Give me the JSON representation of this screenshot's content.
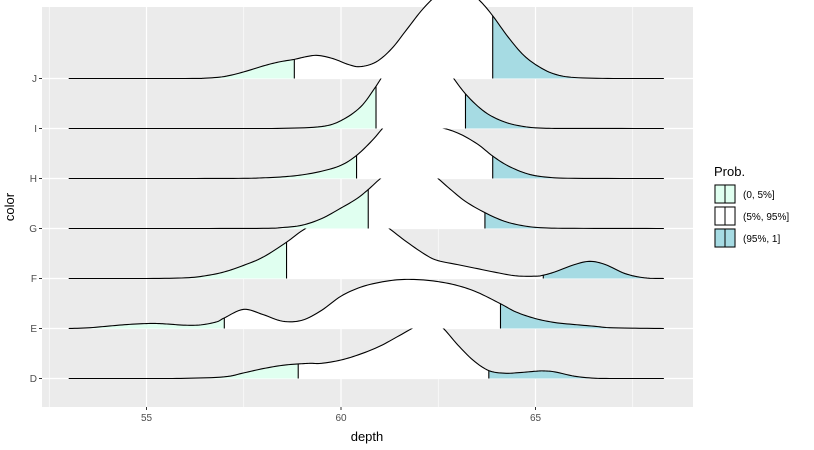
{
  "chart_data": {
    "type": "ridgeline",
    "xlabel": "depth",
    "ylabel": "color",
    "xlim": [
      52.5,
      68.5
    ],
    "x_ticks": [
      55,
      60,
      65
    ],
    "x_tick_labels": [
      "55",
      "60",
      "65"
    ],
    "categories": [
      "D",
      "E",
      "F",
      "G",
      "H",
      "I",
      "J"
    ],
    "legend": {
      "title": "Prob.",
      "placement": "right",
      "entries": [
        {
          "label": "(0, 5%]",
          "color": "#e0fff0"
        },
        {
          "label": "(5%, 95%]",
          "color": "#ffffff"
        },
        {
          "label": "(95%, 1]",
          "color": "#a6dbe3"
        }
      ]
    },
    "colors": {
      "panel": "#ebebeb",
      "grid": "#ffffff",
      "low_tail": "#e0fff0",
      "mid": "#ffffff",
      "high_tail": "#a6dbe3",
      "outline": "#000000"
    },
    "grid": true,
    "series": [
      {
        "category": "D",
        "q05": 58.9,
        "q95": 63.8,
        "x": [
          53,
          55,
          56,
          57,
          57.5,
          58,
          58.5,
          58.9,
          59.2,
          59.5,
          60,
          60.5,
          61,
          61.5,
          62,
          62.3,
          62.6,
          63,
          63.4,
          63.8,
          64.2,
          64.6,
          65,
          65.2,
          65.5,
          66,
          66.5,
          67,
          68.3
        ],
        "h": [
          0,
          0,
          0.005,
          0.05,
          0.17,
          0.3,
          0.4,
          0.44,
          0.46,
          0.46,
          0.56,
          0.74,
          0.98,
          1.3,
          1.62,
          1.7,
          1.55,
          1.02,
          0.55,
          0.24,
          0.16,
          0.18,
          0.22,
          0.23,
          0.2,
          0.07,
          0.01,
          0,
          0
        ]
      },
      {
        "category": "E",
        "q05": 57.0,
        "q95": 64.1,
        "x": [
          53,
          53.5,
          54,
          54.5,
          55,
          55.3,
          55.6,
          56,
          56.4,
          56.8,
          57,
          57.5,
          58,
          58.5,
          59,
          59.5,
          60,
          60.5,
          61,
          61.5,
          62,
          62.5,
          63,
          63.5,
          64.1,
          64.5,
          65,
          65.5,
          66,
          66.5,
          67,
          68.3
        ],
        "h": [
          0,
          0.02,
          0.07,
          0.12,
          0.15,
          0.15,
          0.13,
          0.1,
          0.11,
          0.2,
          0.32,
          0.58,
          0.42,
          0.22,
          0.25,
          0.55,
          0.98,
          1.25,
          1.4,
          1.48,
          1.48,
          1.42,
          1.3,
          1.1,
          0.75,
          0.5,
          0.3,
          0.18,
          0.12,
          0.07,
          0.02,
          0
        ]
      },
      {
        "category": "F",
        "q05": 58.6,
        "q95": 65.2,
        "x": [
          53,
          55,
          56,
          56.5,
          57,
          57.5,
          58,
          58.6,
          59,
          59.5,
          60,
          60.3,
          60.8,
          61.2,
          61.7,
          62.2,
          62.5,
          63,
          63.5,
          64,
          64.5,
          65,
          65.2,
          65.5,
          66,
          66.4,
          66.8,
          67.3,
          67.8,
          68.3
        ],
        "h": [
          0,
          0,
          0.02,
          0.08,
          0.2,
          0.4,
          0.65,
          1.1,
          1.45,
          1.78,
          1.98,
          2.0,
          1.88,
          1.55,
          1.1,
          0.7,
          0.54,
          0.42,
          0.3,
          0.18,
          0.08,
          0.07,
          0.1,
          0.2,
          0.42,
          0.52,
          0.42,
          0.15,
          0.02,
          0
        ]
      },
      {
        "category": "G",
        "q05": 60.7,
        "q95": 63.7,
        "x": [
          53,
          56,
          58,
          58.5,
          59,
          59.5,
          60,
          60.4,
          60.7,
          61,
          61.3,
          61.6,
          61.8,
          62,
          62.4,
          62.8,
          63.2,
          63.7,
          64.2,
          64.7,
          65.2,
          66,
          68.3
        ],
        "h": [
          0,
          0,
          0.005,
          0.03,
          0.1,
          0.3,
          0.62,
          0.9,
          1.18,
          1.5,
          1.76,
          1.88,
          1.9,
          1.86,
          1.6,
          1.2,
          0.82,
          0.48,
          0.22,
          0.08,
          0.02,
          0.005,
          0
        ]
      },
      {
        "category": "H",
        "q05": 60.4,
        "q95": 63.9,
        "x": [
          53,
          56,
          57.5,
          58,
          58.5,
          59,
          59.5,
          60,
          60.4,
          60.8,
          61.2,
          61.5,
          61.8,
          62.1,
          62.5,
          63,
          63.5,
          63.9,
          64.3,
          64.8,
          65.3,
          66,
          68.3
        ],
        "h": [
          0,
          0,
          0.005,
          0.02,
          0.05,
          0.11,
          0.22,
          0.4,
          0.7,
          1.15,
          1.68,
          1.84,
          1.78,
          1.6,
          1.56,
          1.38,
          1.05,
          0.68,
          0.38,
          0.14,
          0.04,
          0.005,
          0
        ]
      },
      {
        "category": "I",
        "q05": 60.9,
        "q95": 63.2,
        "x": [
          53,
          57,
          58.5,
          59.5,
          60,
          60.5,
          60.9,
          61.3,
          61.7,
          62,
          62.3,
          62.7,
          63.2,
          63.7,
          64.2,
          64.7,
          65.2,
          66,
          68.3
        ],
        "h": [
          0,
          0,
          0.005,
          0.06,
          0.24,
          0.65,
          1.28,
          2.0,
          2.36,
          2.4,
          2.28,
          1.82,
          1.05,
          0.5,
          0.2,
          0.06,
          0.01,
          0.002,
          0
        ]
      },
      {
        "category": "J",
        "q05": 58.8,
        "q95": 63.9,
        "x": [
          53,
          56,
          56.5,
          57,
          57.5,
          58,
          58.4,
          58.8,
          59.1,
          59.4,
          59.8,
          60.2,
          60.5,
          60.9,
          61.3,
          61.7,
          62.1,
          62.5,
          62.9,
          63.3,
          63.6,
          63.9,
          64.3,
          64.7,
          65.1,
          65.5,
          66,
          67,
          68.3
        ],
        "h": [
          0,
          0,
          0.01,
          0.06,
          0.2,
          0.38,
          0.5,
          0.58,
          0.66,
          0.7,
          0.6,
          0.42,
          0.36,
          0.5,
          0.9,
          1.5,
          2.1,
          2.55,
          2.72,
          2.62,
          2.32,
          1.9,
          1.25,
          0.7,
          0.35,
          0.13,
          0.03,
          0,
          0
        ]
      }
    ]
  }
}
